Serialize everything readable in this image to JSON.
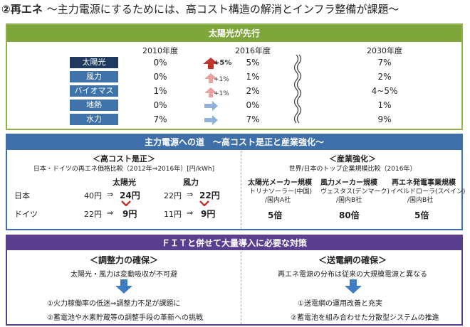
{
  "header": {
    "number": "②",
    "title": "再エネ",
    "subtitle": "～主力電源にするためには、高コスト構造の解消とインフラ整備が課題～"
  },
  "solar_section": {
    "title": "太陽光が先行",
    "years": [
      "2010年度",
      "2016年度",
      "2030年度"
    ],
    "rows": [
      {
        "label": "太陽光",
        "v2010": "0%",
        "delta": "+5%",
        "v2016": "5%",
        "v2030": "7%"
      },
      {
        "label": "風力",
        "v2010": "0%",
        "delta": "+1%",
        "v2016": "1%",
        "v2030": "2%"
      },
      {
        "label": "バイオマス",
        "v2010": "1%",
        "delta": "+1%",
        "v2016": "2%",
        "v2030": "4~5%"
      },
      {
        "label": "地熱",
        "v2010": "0%",
        "delta": "",
        "v2016": "0%",
        "v2030": "1%"
      },
      {
        "label": "水力",
        "v2010": "7%",
        "delta": "",
        "v2016": "7%",
        "v2030": "9%"
      }
    ],
    "colors": {
      "up_big": "#c0362c",
      "up_small": "#e8a3a0",
      "flat": "#8fb3d9"
    }
  },
  "road_section": {
    "title": "主力電源への道　～高コスト是正と産業強化～",
    "cost": {
      "title": "＜高コスト是正＞",
      "note": "日本・ドイツの再エネ価格比較（2012年⇒2016年）[円/kWh]",
      "col_solar": "太陽光",
      "col_wind": "風力",
      "rows": [
        {
          "country": "日本",
          "solar_from": "40円",
          "solar_to": "24円",
          "wind_from": "22円",
          "wind_to": "22円"
        },
        {
          "country": "ドイツ",
          "solar_from": "22円",
          "solar_to": "9円",
          "wind_from": "11円",
          "wind_to": "9円"
        }
      ],
      "arrow": "⇒"
    },
    "industry": {
      "title": "＜産業強化＞",
      "note": "世界/日本のトップ企業規模比較（2016年）",
      "cols": [
        {
          "head": "太陽光メーカー規模",
          "line1": "トリナソーラー(中国)",
          "line2": "/国内A社",
          "ratio": "5倍"
        },
        {
          "head": "風力メーカー規模",
          "line1": "ヴェスタス(デンマーク)",
          "line2": "/国内B社",
          "ratio": "80倍"
        },
        {
          "head": "再エネ発電事業規模",
          "line1": "イベルドローラ(スペイン)",
          "line2": "/国内B社",
          "ratio": "5倍"
        }
      ]
    }
  },
  "fit_section": {
    "title": "ＦＩＴと併せて大量導入に必要な対策",
    "left": {
      "title": "＜調整力の確保＞",
      "lead": "太陽光・風力は変動吸収が不可避",
      "item1": "①火力稼働率の低迷⇒調整力不足が課題に",
      "item2": "②蓄電池や水素貯蔵等の調整手段の革新への挑戦"
    },
    "right": {
      "title": "＜送電網の確保＞",
      "lead": "再エネ電源の分布は従来の大規模電源と異なる",
      "item1": "①送電網の運用改善と充実",
      "item2": "②蓄電池を組み合わせた分散型システムの推進"
    }
  }
}
